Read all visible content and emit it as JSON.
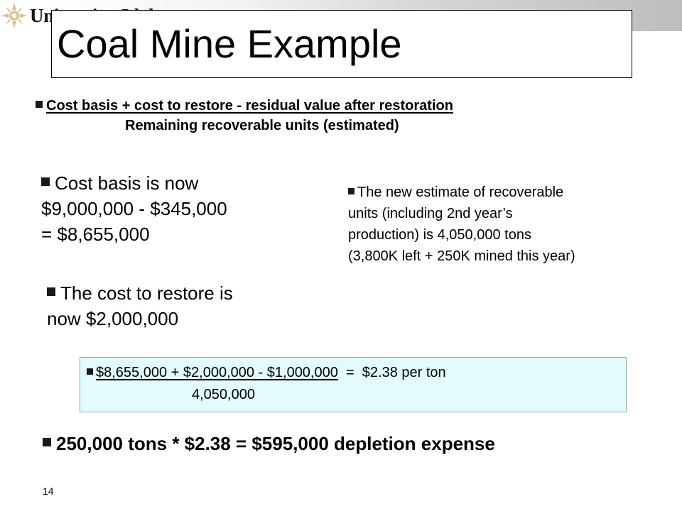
{
  "header": {
    "logo_text_main1": "University",
    "logo_text_small": "of",
    "logo_text_main2": "Idaho",
    "title": "Coal Mine Example"
  },
  "formula": {
    "numerator": "Cost basis + cost to restore - residual value after restoration",
    "denominator": "Remaining recoverable units (estimated)"
  },
  "cost_basis": {
    "line1": "Cost basis is now",
    "line2": "$9,000,000 - $345,000",
    "line3": "= $8,655,000"
  },
  "recoverable": {
    "line1": "The new estimate of recoverable",
    "line2": "units (including 2nd year’s",
    "line3": "production) is 4,050,000 tons",
    "line4": "(3,800K left + 250K mined this year)"
  },
  "restore": {
    "line1": "The cost to restore is",
    "line2": "now $2,000,000"
  },
  "calculation": {
    "numerator": "$8,655,000 + $2,000,000 - $1,000,000",
    "equals": "  =  $2.38 per ton",
    "denominator": "4,050,000"
  },
  "result": "250,000 tons * $2.38 = $595,000 depletion expense",
  "page_number": "14",
  "colors": {
    "calc_box_bg": "#e3fbfd",
    "text": "#000000"
  }
}
